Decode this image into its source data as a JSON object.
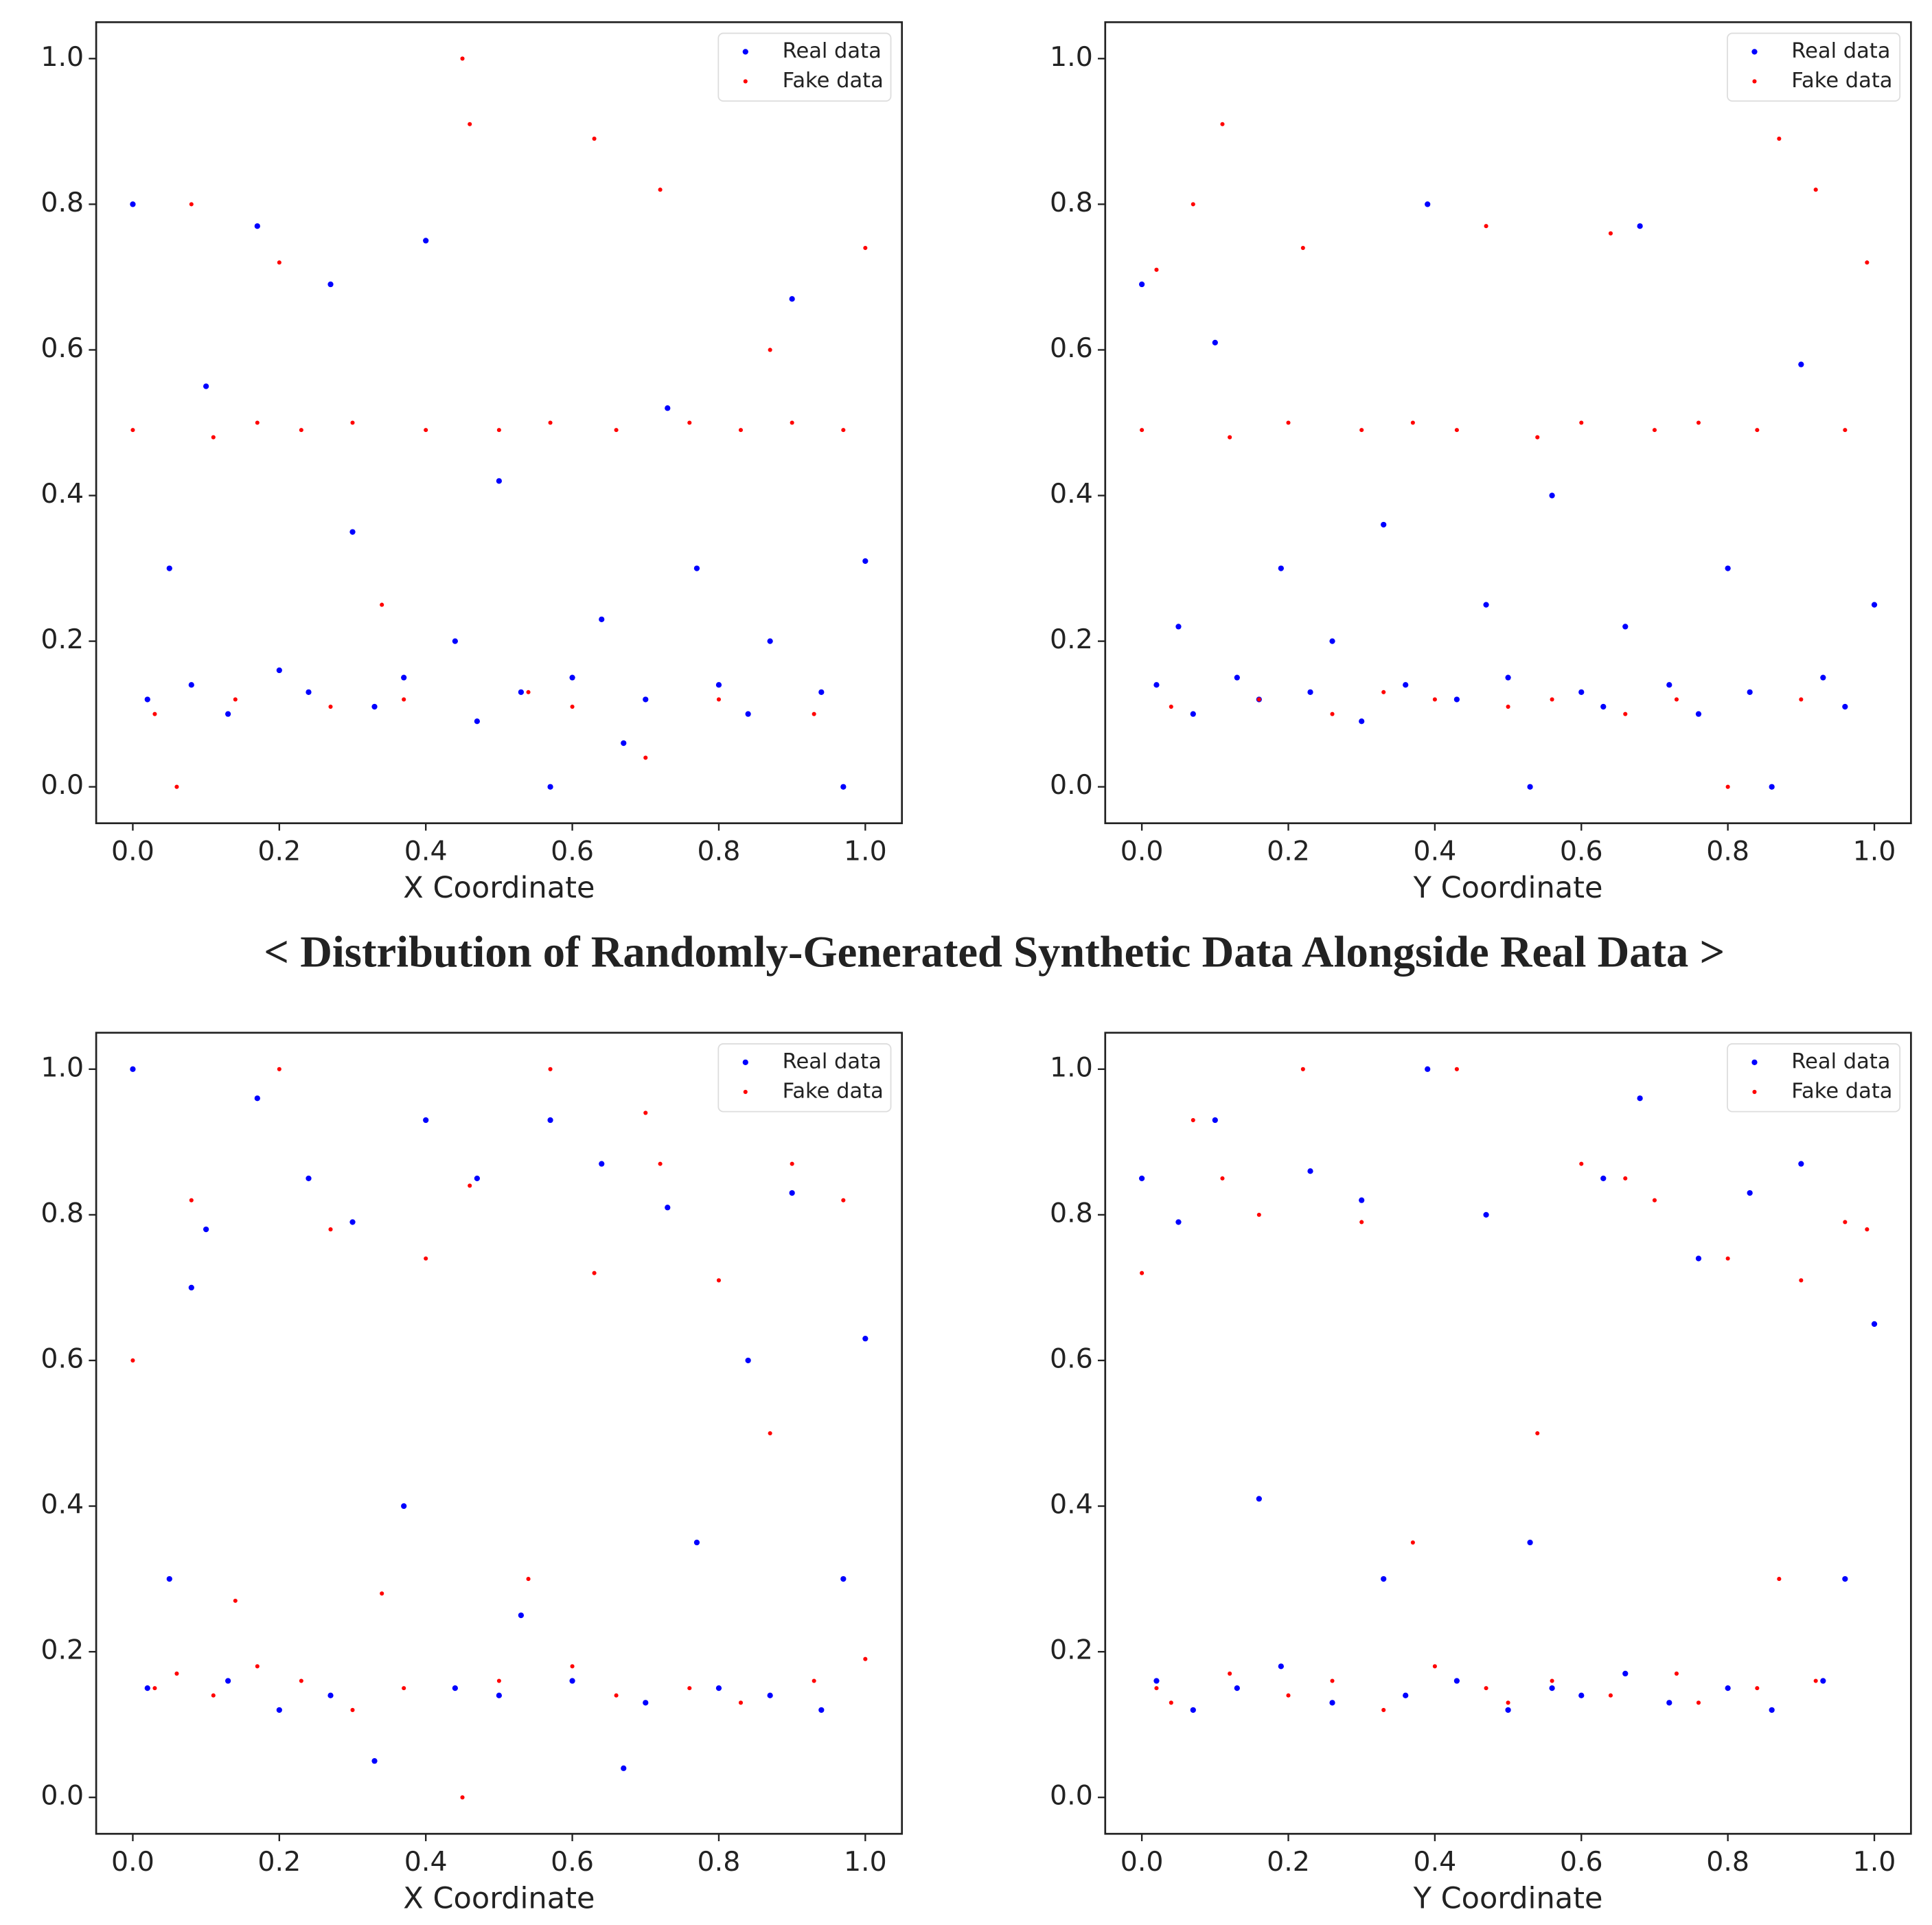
{
  "caption": "< Distribution of Randomly-Generated Synthetic Data Alongside Real Data >",
  "chart_data": [
    {
      "type": "scatter",
      "xlabel": "X Coordinate",
      "legend": "upper right",
      "grid": false,
      "xlim": [
        -0.05,
        1.05
      ],
      "ylim": [
        -0.05,
        1.05
      ],
      "xticks": [
        {
          "value": 0,
          "label": "0.0"
        },
        0.2,
        0.4,
        0.6,
        0.8,
        {
          "value": 1,
          "label": "1.0"
        }
      ],
      "yticks": [
        {
          "value": 0,
          "label": "0.0"
        },
        0.2,
        0.4,
        0.6,
        0.8,
        {
          "value": 1,
          "label": "1.0"
        }
      ],
      "series": [
        {
          "name": "Real data",
          "color": "#0000ff",
          "x": [
            0.0,
            0.02,
            0.05,
            0.08,
            0.1,
            0.13,
            0.17,
            0.2,
            0.24,
            0.27,
            0.3,
            0.33,
            0.37,
            0.4,
            0.44,
            0.47,
            0.5,
            0.53,
            0.57,
            0.6,
            0.64,
            0.67,
            0.7,
            0.73,
            0.77,
            0.8,
            0.84,
            0.87,
            0.9,
            0.94,
            0.97,
            1.0
          ],
          "values": [
            0.8,
            0.12,
            0.3,
            0.14,
            0.55,
            0.1,
            0.77,
            0.16,
            0.13,
            0.69,
            0.35,
            0.11,
            0.15,
            0.75,
            0.2,
            0.09,
            0.42,
            0.13,
            0.0,
            0.15,
            0.23,
            0.06,
            0.12,
            0.52,
            0.3,
            0.14,
            0.1,
            0.2,
            0.67,
            0.13,
            0.0,
            0.31
          ]
        },
        {
          "name": "Fake data",
          "color": "#ff0000",
          "x": [
            0.0,
            0.03,
            0.06,
            0.08,
            0.11,
            0.14,
            0.17,
            0.2,
            0.23,
            0.27,
            0.3,
            0.34,
            0.37,
            0.4,
            0.45,
            0.46,
            0.5,
            0.54,
            0.57,
            0.6,
            0.63,
            0.66,
            0.7,
            0.72,
            0.76,
            0.8,
            0.83,
            0.87,
            0.9,
            0.93,
            0.97,
            1.0
          ],
          "values": [
            0.49,
            0.1,
            0.0,
            0.8,
            0.48,
            0.12,
            0.5,
            0.72,
            0.49,
            0.11,
            0.5,
            0.25,
            0.12,
            0.49,
            1.0,
            0.91,
            0.49,
            0.13,
            0.5,
            0.11,
            0.89,
            0.49,
            0.04,
            0.82,
            0.5,
            0.12,
            0.49,
            0.6,
            0.5,
            0.1,
            0.49,
            0.74
          ]
        }
      ]
    },
    {
      "type": "scatter",
      "xlabel": "Y Coordinate",
      "legend": "upper right",
      "grid": false,
      "xlim": [
        -0.05,
        1.05
      ],
      "ylim": [
        -0.05,
        1.05
      ],
      "xticks": [
        {
          "value": 0,
          "label": "0.0"
        },
        0.2,
        0.4,
        0.6,
        0.8,
        {
          "value": 1,
          "label": "1.0"
        }
      ],
      "yticks": [
        {
          "value": 0,
          "label": "0.0"
        },
        0.2,
        0.4,
        0.6,
        0.8,
        {
          "value": 1,
          "label": "1.0"
        }
      ],
      "series": [
        {
          "name": "Real data",
          "color": "#0000ff",
          "x": [
            0.0,
            0.02,
            0.05,
            0.07,
            0.1,
            0.13,
            0.16,
            0.19,
            0.23,
            0.26,
            0.3,
            0.33,
            0.36,
            0.39,
            0.43,
            0.47,
            0.5,
            0.53,
            0.56,
            0.6,
            0.63,
            0.66,
            0.68,
            0.72,
            0.76,
            0.8,
            0.83,
            0.86,
            0.9,
            0.93,
            0.96,
            1.0
          ],
          "values": [
            0.69,
            0.14,
            0.22,
            0.1,
            0.61,
            0.15,
            0.12,
            0.3,
            0.13,
            0.2,
            0.09,
            0.36,
            0.14,
            0.8,
            0.12,
            0.25,
            0.15,
            0.0,
            0.4,
            0.13,
            0.11,
            0.22,
            0.77,
            0.14,
            0.1,
            0.3,
            0.13,
            0.0,
            0.58,
            0.15,
            0.11,
            0.25
          ]
        },
        {
          "name": "Fake data",
          "color": "#ff0000",
          "x": [
            0.0,
            0.02,
            0.04,
            0.07,
            0.11,
            0.12,
            0.16,
            0.2,
            0.22,
            0.26,
            0.3,
            0.33,
            0.37,
            0.4,
            0.43,
            0.47,
            0.5,
            0.54,
            0.56,
            0.6,
            0.64,
            0.66,
            0.7,
            0.73,
            0.76,
            0.8,
            0.84,
            0.87,
            0.9,
            0.92,
            0.96,
            0.99
          ],
          "values": [
            0.49,
            0.71,
            0.11,
            0.8,
            0.91,
            0.48,
            0.12,
            0.5,
            0.74,
            0.1,
            0.49,
            0.13,
            0.5,
            0.12,
            0.49,
            0.77,
            0.11,
            0.48,
            0.12,
            0.5,
            0.76,
            0.1,
            0.49,
            0.12,
            0.5,
            0.0,
            0.49,
            0.89,
            0.12,
            0.82,
            0.49,
            0.72
          ]
        }
      ]
    },
    {
      "type": "scatter",
      "xlabel": "X Coordinate",
      "legend": "upper right",
      "grid": false,
      "xlim": [
        -0.05,
        1.05
      ],
      "ylim": [
        -0.05,
        1.05
      ],
      "xticks": [
        {
          "value": 0,
          "label": "0.0"
        },
        0.2,
        0.4,
        0.6,
        0.8,
        {
          "value": 1,
          "label": "1.0"
        }
      ],
      "yticks": [
        {
          "value": 0,
          "label": "0.0"
        },
        0.2,
        0.4,
        0.6,
        0.8,
        {
          "value": 1,
          "label": "1.0"
        }
      ],
      "series": [
        {
          "name": "Real data",
          "color": "#0000ff",
          "x": [
            0.0,
            0.02,
            0.05,
            0.08,
            0.1,
            0.13,
            0.17,
            0.2,
            0.24,
            0.27,
            0.3,
            0.33,
            0.37,
            0.4,
            0.44,
            0.47,
            0.5,
            0.53,
            0.57,
            0.6,
            0.64,
            0.67,
            0.7,
            0.73,
            0.77,
            0.8,
            0.84,
            0.87,
            0.9,
            0.94,
            0.97,
            1.0
          ],
          "values": [
            1.0,
            0.15,
            0.3,
            0.7,
            0.78,
            0.16,
            0.96,
            0.12,
            0.85,
            0.14,
            0.79,
            0.05,
            0.4,
            0.93,
            0.15,
            0.85,
            0.14,
            0.25,
            0.93,
            0.16,
            0.87,
            0.04,
            0.13,
            0.81,
            0.35,
            0.15,
            0.6,
            0.14,
            0.83,
            0.12,
            0.3,
            0.63
          ]
        },
        {
          "name": "Fake data",
          "color": "#ff0000",
          "x": [
            0.0,
            0.03,
            0.06,
            0.08,
            0.11,
            0.14,
            0.17,
            0.2,
            0.23,
            0.27,
            0.3,
            0.34,
            0.37,
            0.4,
            0.45,
            0.46,
            0.5,
            0.54,
            0.57,
            0.6,
            0.63,
            0.66,
            0.7,
            0.72,
            0.76,
            0.8,
            0.83,
            0.87,
            0.9,
            0.93,
            0.97,
            1.0
          ],
          "values": [
            0.6,
            0.15,
            0.17,
            0.82,
            0.14,
            0.27,
            0.18,
            1.0,
            0.16,
            0.78,
            0.12,
            0.28,
            0.15,
            0.74,
            0.0,
            0.84,
            0.16,
            0.3,
            1.0,
            0.18,
            0.72,
            0.14,
            0.94,
            0.87,
            0.15,
            0.71,
            0.13,
            0.5,
            0.87,
            0.16,
            0.82,
            0.19
          ]
        }
      ]
    },
    {
      "type": "scatter",
      "xlabel": "Y Coordinate",
      "legend": "upper right",
      "grid": false,
      "xlim": [
        -0.05,
        1.05
      ],
      "ylim": [
        -0.05,
        1.05
      ],
      "xticks": [
        {
          "value": 0,
          "label": "0.0"
        },
        0.2,
        0.4,
        0.6,
        0.8,
        {
          "value": 1,
          "label": "1.0"
        }
      ],
      "yticks": [
        {
          "value": 0,
          "label": "0.0"
        },
        0.2,
        0.4,
        0.6,
        0.8,
        {
          "value": 1,
          "label": "1.0"
        }
      ],
      "series": [
        {
          "name": "Real data",
          "color": "#0000ff",
          "x": [
            0.0,
            0.02,
            0.05,
            0.07,
            0.1,
            0.13,
            0.16,
            0.19,
            0.23,
            0.26,
            0.3,
            0.33,
            0.36,
            0.39,
            0.43,
            0.47,
            0.5,
            0.53,
            0.56,
            0.6,
            0.63,
            0.66,
            0.68,
            0.72,
            0.76,
            0.8,
            0.83,
            0.86,
            0.9,
            0.93,
            0.96,
            1.0
          ],
          "values": [
            0.85,
            0.16,
            0.79,
            0.12,
            0.93,
            0.15,
            0.41,
            0.18,
            0.86,
            0.13,
            0.82,
            0.3,
            0.14,
            1.0,
            0.16,
            0.8,
            0.12,
            0.35,
            0.15,
            0.14,
            0.85,
            0.17,
            0.96,
            0.13,
            0.74,
            0.15,
            0.83,
            0.12,
            0.87,
            0.16,
            0.3,
            0.65
          ]
        },
        {
          "name": "Fake data",
          "color": "#ff0000",
          "x": [
            0.0,
            0.02,
            0.04,
            0.07,
            0.11,
            0.12,
            0.16,
            0.2,
            0.22,
            0.26,
            0.3,
            0.33,
            0.37,
            0.4,
            0.43,
            0.47,
            0.5,
            0.54,
            0.56,
            0.6,
            0.64,
            0.66,
            0.7,
            0.73,
            0.76,
            0.8,
            0.84,
            0.87,
            0.9,
            0.92,
            0.96,
            0.99
          ],
          "values": [
            0.72,
            0.15,
            0.13,
            0.93,
            0.85,
            0.17,
            0.8,
            0.14,
            1.0,
            0.16,
            0.79,
            0.12,
            0.35,
            0.18,
            1.0,
            0.15,
            0.13,
            0.5,
            0.16,
            0.87,
            0.14,
            0.85,
            0.82,
            0.17,
            0.13,
            0.74,
            0.15,
            0.3,
            0.71,
            0.16,
            0.79,
            0.78
          ]
        }
      ]
    }
  ]
}
